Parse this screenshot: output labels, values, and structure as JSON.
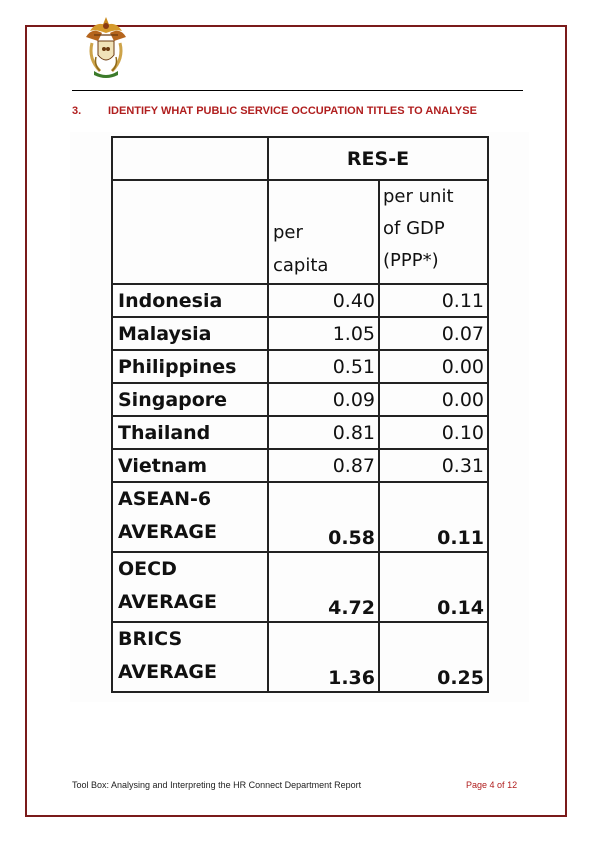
{
  "section": {
    "number": "3.",
    "title": "IDENTIFY WHAT PUBLIC SERVICE OCCUPATION TITLES TO ANALYSE"
  },
  "table": {
    "group_header": "RES-E",
    "col_a_header": [
      "per",
      "capita"
    ],
    "col_b_header": [
      "per unit",
      "of GDP",
      "(PPP*)"
    ],
    "rows": [
      {
        "name": "Indonesia",
        "a": "0.40",
        "b": "0.11"
      },
      {
        "name": "Malaysia",
        "a": "1.05",
        "b": "0.07"
      },
      {
        "name": "Philippines",
        "a": "0.51",
        "b": "0.00"
      },
      {
        "name": "Singapore",
        "a": "0.09",
        "b": "0.00"
      },
      {
        "name": "Thailand",
        "a": "0.81",
        "b": "0.10"
      },
      {
        "name": "Vietnam",
        "a": "0.87",
        "b": "0.31"
      }
    ],
    "averages": [
      {
        "line1": "ASEAN-6",
        "line2": "AVERAGE",
        "a": "0.58",
        "b": "0.11"
      },
      {
        "line1": "OECD",
        "line2": "AVERAGE",
        "a": "4.72",
        "b": "0.14"
      },
      {
        "line1": "BRICS",
        "line2": "AVERAGE",
        "a": "1.36",
        "b": "0.25"
      }
    ]
  },
  "footer": {
    "left": "Tool Box: Analysing and Interpreting the HR Connect Department Report",
    "page_prefix": "Page ",
    "page_current": "4",
    "page_of": " of ",
    "page_total": "12"
  },
  "colors": {
    "accent": "#b01e1e",
    "frame": "#7a1a1a"
  },
  "icons": {
    "emblem": "coat-of-arms-icon"
  }
}
